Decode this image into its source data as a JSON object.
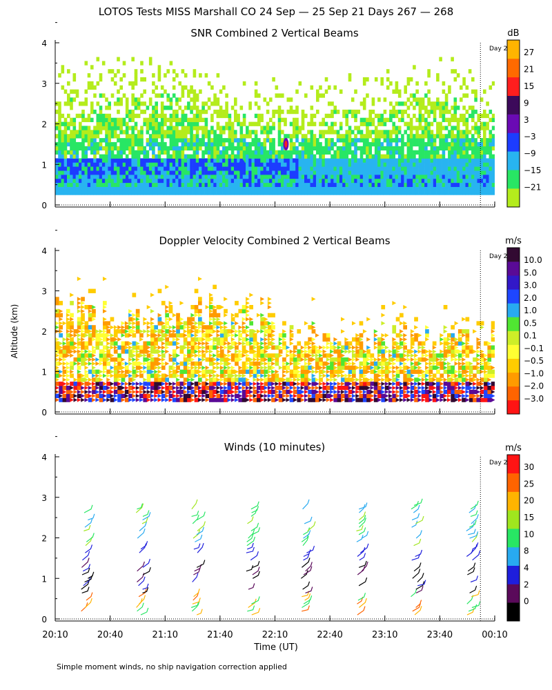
{
  "figure": {
    "title": "LOTOS Tests MISS Marshall CO  24 Sep — 25 Sep 21 Days 267 — 268",
    "ylabel": "Altitude (km)",
    "xlabel": "Time (UT)",
    "footnote": "Simple moment winds, no ship navigation correction applied",
    "day_marker": "Day 2",
    "x_ticks": [
      "20:10",
      "20:40",
      "21:10",
      "21:40",
      "22:10",
      "22:40",
      "23:10",
      "23:40",
      "00:10"
    ],
    "y_ticks": [
      "0",
      "1",
      "2",
      "3",
      "4"
    ]
  },
  "chart_data": [
    {
      "type": "heatmap",
      "title": "SNR Combined 2 Vertical Beams",
      "unit": "dB",
      "xlim_hours_after_2010UT": [
        0,
        4
      ],
      "ylim": [
        0,
        4
      ],
      "colorbar_ticks": [
        "27",
        "21",
        "15",
        "9",
        "3",
        "−3",
        "−9",
        "−15",
        "−21"
      ],
      "colorbar_colors": [
        "#b4ec1c",
        "#28e664",
        "#28b4f0",
        "#1c3cff",
        "#6a0ab4",
        "#3c0a5a",
        "#ff1e1e",
        "#ff6a00",
        "#ffb400"
      ],
      "description_rows": [
        {
          "altitude_km": 0.35,
          "value_db": -9
        },
        {
          "altitude_km": 0.8,
          "value_db": -3
        },
        {
          "altitude_km": 1.4,
          "value_db": -15
        },
        {
          "altitude_km": 2.2,
          "value_db": -21
        }
      ]
    },
    {
      "type": "heatmap",
      "title": "Doppler Velocity Combined 2 Vertical Beams",
      "unit": "m/s",
      "xlim_hours_after_2010UT": [
        0,
        4
      ],
      "ylim": [
        0,
        4
      ],
      "colorbar_ticks": [
        "10.0",
        "5.0",
        "3.0",
        "2.0",
        "1.0",
        "0.5",
        "0.1",
        "−0.1",
        "−0.5",
        "−1.0",
        "−2.0",
        "−3.0"
      ],
      "colorbar_colors": [
        "#ff1414",
        "#ff6400",
        "#ff9b00",
        "#ffcc00",
        "#ffff32",
        "#cdee28",
        "#50e632",
        "#28aaf0",
        "#1e46ff",
        "#3218c8",
        "#5a0a96",
        "#320a32"
      ]
    },
    {
      "type": "scatter",
      "title": "Winds (10 minutes)",
      "unit": "m/s",
      "xlim_hours_after_2010UT": [
        0,
        4
      ],
      "ylim": [
        0,
        4
      ],
      "colorbar_ticks": [
        "30",
        "25",
        "20",
        "15",
        "10",
        "8",
        "4",
        "2",
        "0"
      ],
      "colorbar_colors": [
        "#000000",
        "#5a0a5a",
        "#1e1edc",
        "#28aaf0",
        "#28e664",
        "#a0e61e",
        "#ffb400",
        "#ff6400",
        "#ff1414"
      ],
      "profile_times": [
        "20:30",
        "21:00",
        "21:30",
        "22:00",
        "22:30",
        "23:00",
        "23:30",
        "00:00"
      ]
    }
  ]
}
